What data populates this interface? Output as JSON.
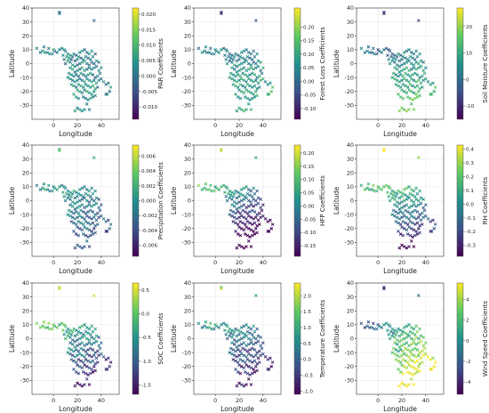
{
  "figure": {
    "panel_count": 9,
    "layout": "3x3 grid",
    "colormap": "viridis",
    "colormap_stops": [
      "#440154",
      "#3b528b",
      "#21918c",
      "#5ec962",
      "#fde725"
    ],
    "marker": "x",
    "grid": true
  },
  "chart_data": [
    {
      "type": "scatter",
      "id": "par",
      "title": "",
      "xlabel": "Longitude",
      "ylabel": "Latitude",
      "colorbar_label": "PAR Coefficients",
      "xlim": [
        -18,
        55
      ],
      "ylim": [
        -40,
        40
      ],
      "xticks": [
        0,
        20,
        40
      ],
      "yticks": [
        -30,
        -20,
        -10,
        0,
        10,
        20,
        30,
        40
      ],
      "clim": [
        -0.014,
        0.022
      ],
      "cticks": [
        -0.01,
        -0.005,
        0.0,
        0.005,
        0.01,
        0.015,
        0.02
      ],
      "cticklabels": [
        "-0.010",
        "-0.005",
        "0.000",
        "0.005",
        "0.010",
        "0.015",
        "0.020"
      ],
      "coef": {
        "base": 0.003,
        "lon": -5e-05,
        "lat": -0.0001,
        "noise": 0.0055
      }
    },
    {
      "type": "scatter",
      "id": "forest_loss",
      "title": "",
      "xlabel": "Longitude",
      "ylabel": "Latitude",
      "colorbar_label": "Forest Loss Coefficients",
      "xlim": [
        -18,
        55
      ],
      "ylim": [
        -40,
        40
      ],
      "xticks": [
        0,
        20,
        40
      ],
      "yticks": [
        -30,
        -20,
        -10,
        0,
        10,
        20,
        30,
        40
      ],
      "clim": [
        -0.14,
        0.27
      ],
      "cticks": [
        -0.1,
        -0.05,
        0.0,
        0.05,
        0.1,
        0.15,
        0.2
      ],
      "cticklabels": [
        "-0.10",
        "-0.05",
        "0.00",
        "0.05",
        "0.10",
        "0.15",
        "0.20"
      ],
      "coef": {
        "base": 0.04,
        "lon": 0.0004,
        "lat": -0.002,
        "noise": 0.06
      }
    },
    {
      "type": "scatter",
      "id": "soil_moisture",
      "title": "",
      "xlabel": "Longitude",
      "ylabel": "Latitude",
      "colorbar_label": "Soil Moisture Coefficients",
      "xlim": [
        -18,
        55
      ],
      "ylim": [
        -40,
        40
      ],
      "xticks": [
        0,
        20,
        40
      ],
      "yticks": [
        -30,
        -20,
        -10,
        0,
        10,
        20,
        30,
        40
      ],
      "clim": [
        -15,
        27
      ],
      "cticks": [
        -10,
        0,
        10,
        20
      ],
      "cticklabels": [
        "-10",
        "0",
        "10",
        "20"
      ],
      "coef": {
        "base": 4,
        "lon": 0.05,
        "lat": -0.3,
        "noise": 6
      }
    },
    {
      "type": "scatter",
      "id": "precipitation",
      "title": "",
      "xlabel": "Longitude",
      "ylabel": "Latitude",
      "colorbar_label": "Precipitation Coefficients",
      "xlim": [
        -18,
        55
      ],
      "ylim": [
        -40,
        40
      ],
      "xticks": [
        0,
        20,
        40
      ],
      "yticks": [
        -30,
        -20,
        -10,
        0,
        10,
        20,
        30,
        40
      ],
      "clim": [
        -0.0075,
        0.0075
      ],
      "cticks": [
        -0.006,
        -0.004,
        -0.002,
        0.0,
        0.002,
        0.004,
        0.006
      ],
      "cticklabels": [
        "-0.006",
        "-0.004",
        "-0.002",
        "0.000",
        "0.002",
        "0.004",
        "0.006"
      ],
      "coef": {
        "base": -0.0003,
        "lon": -3e-05,
        "lat": 8e-05,
        "noise": 0.0022
      }
    },
    {
      "type": "scatter",
      "id": "hfp",
      "title": "",
      "xlabel": "Longitude",
      "ylabel": "Latitude",
      "colorbar_label": "HFP Coefficients",
      "xlim": [
        -18,
        55
      ],
      "ylim": [
        -40,
        40
      ],
      "xticks": [
        0,
        20,
        40
      ],
      "yticks": [
        -30,
        -20,
        -10,
        0,
        10,
        20,
        30,
        40
      ],
      "clim": [
        -0.19,
        0.23
      ],
      "cticks": [
        -0.15,
        -0.1,
        -0.05,
        0.0,
        0.05,
        0.1,
        0.15,
        0.2
      ],
      "cticklabels": [
        "-0.15",
        "-0.10",
        "-0.05",
        "0.00",
        "0.05",
        "0.10",
        "0.15",
        "0.20"
      ],
      "coef": {
        "base": 0.02,
        "lon": -0.003,
        "lat": 0.006,
        "noise": 0.05
      }
    },
    {
      "type": "scatter",
      "id": "rh",
      "title": "",
      "xlabel": "Longitude",
      "ylabel": "Latitude",
      "colorbar_label": "RH Coefficients",
      "xlim": [
        -18,
        55
      ],
      "ylim": [
        -40,
        40
      ],
      "xticks": [
        0,
        20,
        40
      ],
      "yticks": [
        -30,
        -20,
        -10,
        0,
        10,
        20,
        30,
        40
      ],
      "clim": [
        -0.38,
        0.43
      ],
      "cticks": [
        -0.3,
        -0.2,
        -0.1,
        0.0,
        0.1,
        0.2,
        0.3,
        0.4
      ],
      "cticklabels": [
        "-0.3",
        "-0.2",
        "-0.1",
        "0.0",
        "0.1",
        "0.2",
        "0.3",
        "0.4"
      ],
      "coef": {
        "base": 0.05,
        "lon": -0.001,
        "lat": 0.012,
        "noise": 0.1
      }
    },
    {
      "type": "scatter",
      "id": "soc",
      "title": "",
      "xlabel": "Longitude",
      "ylabel": "Latitude",
      "colorbar_label": "SOC Coefficients",
      "xlim": [
        -18,
        55
      ],
      "ylim": [
        -40,
        40
      ],
      "xticks": [
        0,
        20,
        40
      ],
      "yticks": [
        -30,
        -20,
        -10,
        0,
        10,
        20,
        30,
        40
      ],
      "clim": [
        -1.7,
        0.65
      ],
      "cticks": [
        -1.5,
        -1.0,
        -0.5,
        0.0,
        0.5
      ],
      "cticklabels": [
        "-1.5",
        "-1.0",
        "-0.5",
        "0.0",
        "0.5"
      ],
      "coef": {
        "base": -0.35,
        "lon": -0.01,
        "lat": 0.03,
        "noise": 0.35
      }
    },
    {
      "type": "scatter",
      "id": "temperature",
      "title": "",
      "xlabel": "Longitude",
      "ylabel": "Latitude",
      "colorbar_label": "Temperature Coefficients",
      "xlim": [
        -18,
        55
      ],
      "ylim": [
        -40,
        40
      ],
      "xticks": [
        0,
        20,
        40
      ],
      "yticks": [
        -30,
        -20,
        -10,
        0,
        10,
        20,
        30,
        40
      ],
      "clim": [
        -1.1,
        2.4
      ],
      "cticks": [
        -1.0,
        -0.5,
        0.0,
        0.5,
        1.0,
        1.5,
        2.0
      ],
      "cticklabels": [
        "-1.0",
        "-0.5",
        "0.0",
        "0.5",
        "1.0",
        "1.5",
        "2.0"
      ],
      "coef": {
        "base": 0.4,
        "lon": -0.01,
        "lat": 0.035,
        "noise": 0.5
      }
    },
    {
      "type": "scatter",
      "id": "wind_speed",
      "title": "",
      "xlabel": "Longitude",
      "ylabel": "Latitude",
      "colorbar_label": "Wind Speed Coefficients",
      "xlim": [
        -18,
        55
      ],
      "ylim": [
        -40,
        40
      ],
      "xticks": [
        0,
        20,
        40
      ],
      "yticks": [
        -30,
        -20,
        -10,
        0,
        10,
        20,
        30,
        40
      ],
      "clim": [
        -5.2,
        5.6
      ],
      "cticks": [
        -4,
        -2,
        0,
        2,
        4
      ],
      "cticklabels": [
        "-4",
        "-2",
        "0",
        "2",
        "4"
      ],
      "coef": {
        "base": 0,
        "lon": 0.08,
        "lat": -0.12,
        "noise": 1.6
      }
    }
  ],
  "sites": [
    [
      5,
      37
    ],
    [
      5,
      36
    ],
    [
      34,
      31
    ],
    [
      -14,
      11
    ],
    [
      -11,
      8
    ],
    [
      -9,
      9
    ],
    [
      -7,
      8
    ],
    [
      -5,
      8
    ],
    [
      -3,
      7
    ],
    [
      -1,
      7
    ],
    [
      1,
      9
    ],
    [
      3,
      8
    ],
    [
      5,
      10
    ],
    [
      7,
      11
    ],
    [
      9,
      10
    ],
    [
      10,
      9
    ],
    [
      -8,
      12
    ],
    [
      -4,
      11
    ],
    [
      0,
      10
    ],
    [
      8,
      6
    ],
    [
      11,
      5
    ],
    [
      13,
      4
    ],
    [
      15,
      3
    ],
    [
      12,
      7
    ],
    [
      14,
      6
    ],
    [
      16,
      5
    ],
    [
      17,
      7
    ],
    [
      19,
      6
    ],
    [
      21,
      5
    ],
    [
      23,
      4
    ],
    [
      25,
      3
    ],
    [
      27,
      5
    ],
    [
      29,
      4
    ],
    [
      31,
      3
    ],
    [
      33,
      5
    ],
    [
      35,
      7
    ],
    [
      22,
      8
    ],
    [
      24,
      9
    ],
    [
      26,
      10
    ],
    [
      28,
      8
    ],
    [
      30,
      7
    ],
    [
      32,
      9
    ],
    [
      20,
      3
    ],
    [
      18,
      2
    ],
    [
      14,
      1
    ],
    [
      16,
      -1
    ],
    [
      18,
      -2
    ],
    [
      20,
      -1
    ],
    [
      22,
      0
    ],
    [
      24,
      1
    ],
    [
      26,
      2
    ],
    [
      28,
      0
    ],
    [
      30,
      -1
    ],
    [
      32,
      1
    ],
    [
      34,
      0
    ],
    [
      36,
      2
    ],
    [
      38,
      1
    ],
    [
      36,
      -2
    ],
    [
      34,
      -3
    ],
    [
      32,
      -4
    ],
    [
      30,
      -3
    ],
    [
      28,
      -4
    ],
    [
      26,
      -5
    ],
    [
      24,
      -3
    ],
    [
      22,
      -4
    ],
    [
      20,
      -5
    ],
    [
      18,
      -6
    ],
    [
      16,
      -4
    ],
    [
      14,
      -3
    ],
    [
      13,
      -7
    ],
    [
      15,
      -8
    ],
    [
      17,
      -9
    ],
    [
      19,
      -8
    ],
    [
      21,
      -9
    ],
    [
      23,
      -7
    ],
    [
      25,
      -8
    ],
    [
      27,
      -9
    ],
    [
      29,
      -8
    ],
    [
      31,
      -7
    ],
    [
      33,
      -8
    ],
    [
      35,
      -10
    ],
    [
      37,
      -9
    ],
    [
      39,
      -7
    ],
    [
      38,
      -5
    ],
    [
      40,
      -3
    ],
    [
      12,
      -10
    ],
    [
      14,
      -11
    ],
    [
      16,
      -12
    ],
    [
      18,
      -13
    ],
    [
      20,
      -12
    ],
    [
      22,
      -11
    ],
    [
      24,
      -12
    ],
    [
      26,
      -13
    ],
    [
      28,
      -11
    ],
    [
      30,
      -12
    ],
    [
      32,
      -13
    ],
    [
      34,
      -12
    ],
    [
      36,
      -14
    ],
    [
      38,
      -12
    ],
    [
      40,
      -11
    ],
    [
      42,
      -13
    ],
    [
      44,
      -15
    ],
    [
      46,
      -14
    ],
    [
      48,
      -17
    ],
    [
      47,
      -20
    ],
    [
      45,
      -22
    ],
    [
      15,
      -15
    ],
    [
      17,
      -16
    ],
    [
      19,
      -17
    ],
    [
      21,
      -15
    ],
    [
      23,
      -16
    ],
    [
      25,
      -17
    ],
    [
      27,
      -15
    ],
    [
      29,
      -16
    ],
    [
      31,
      -17
    ],
    [
      33,
      -16
    ],
    [
      35,
      -18
    ],
    [
      37,
      -17
    ],
    [
      20,
      -19
    ],
    [
      22,
      -20
    ],
    [
      24,
      -21
    ],
    [
      26,
      -19
    ],
    [
      28,
      -20
    ],
    [
      30,
      -21
    ],
    [
      32,
      -22
    ],
    [
      34,
      -20
    ],
    [
      17,
      -22
    ],
    [
      19,
      -24
    ],
    [
      21,
      -25
    ],
    [
      25,
      -24
    ],
    [
      27,
      -25
    ],
    [
      29,
      -26
    ],
    [
      31,
      -25
    ],
    [
      33,
      -24
    ],
    [
      35,
      -23
    ],
    [
      28,
      -29
    ],
    [
      20,
      -32
    ],
    [
      22,
      -33
    ],
    [
      18,
      -34
    ],
    [
      24,
      -34
    ],
    [
      26,
      -33
    ],
    [
      30,
      -33
    ],
    [
      44,
      -22
    ],
    [
      12,
      2
    ],
    [
      10,
      0
    ],
    [
      9,
      3
    ]
  ]
}
